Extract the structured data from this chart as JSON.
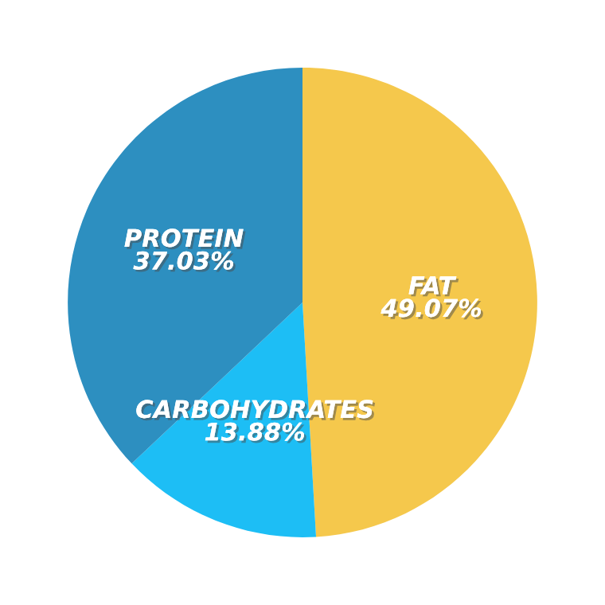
{
  "chart_data": {
    "type": "pie",
    "categories": [
      "FAT",
      "CARBOHYDRATES",
      "PROTEIN"
    ],
    "values": [
      49.07,
      13.88,
      37.03
    ],
    "colors": [
      "#f5c84c",
      "#1dbef5",
      "#2d8fc0"
    ],
    "value_labels": [
      "49.07%",
      "13.88%",
      "37.03%"
    ]
  }
}
